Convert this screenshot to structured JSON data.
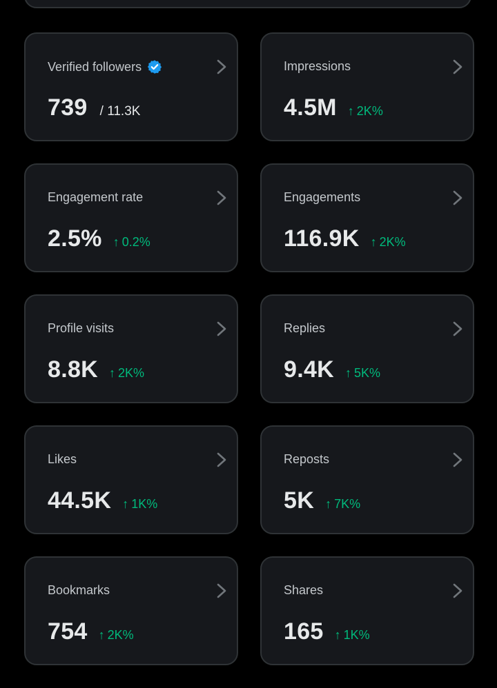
{
  "colors": {
    "background": "#000000",
    "card_background": "#16181c",
    "card_border": "#2f3336",
    "positive_change": "#00ba7c",
    "verified_badge": "#1d9bf0"
  },
  "metrics": [
    {
      "label": "Verified followers",
      "value": "739",
      "total": "/ 11.3K",
      "change": "",
      "verified": true
    },
    {
      "label": "Impressions",
      "value": "4.5M",
      "change": "2K%"
    },
    {
      "label": "Engagement rate",
      "value": "2.5%",
      "change": "0.2%"
    },
    {
      "label": "Engagements",
      "value": "116.9K",
      "change": "2K%"
    },
    {
      "label": "Profile visits",
      "value": "8.8K",
      "change": "2K%"
    },
    {
      "label": "Replies",
      "value": "9.4K",
      "change": "5K%"
    },
    {
      "label": "Likes",
      "value": "44.5K",
      "change": "1K%"
    },
    {
      "label": "Reposts",
      "value": "5K",
      "change": "7K%"
    },
    {
      "label": "Bookmarks",
      "value": "754",
      "change": "2K%"
    },
    {
      "label": "Shares",
      "value": "165",
      "change": "1K%"
    }
  ]
}
